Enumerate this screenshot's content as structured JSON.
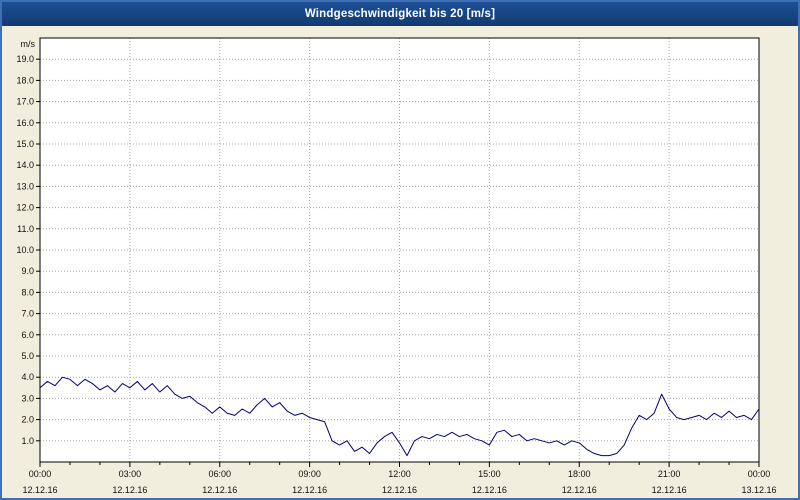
{
  "title": "Windgeschwindigkeit bis 20 [m/s]",
  "colors": {
    "background": "#f2eedd",
    "window_border": "#3f6fb5",
    "titlebar": "#16437e",
    "title_text": "#ffffff",
    "plot_bg": "#ffffff",
    "grid": "#a8a8a8",
    "axis": "#000000",
    "label": "#101010",
    "line": "#00007d"
  },
  "chart_data": {
    "type": "line",
    "title": "Windgeschwindigkeit bis 20 [m/s]",
    "xlabel": "",
    "ylabel": "m/s",
    "ylim": [
      0,
      20
    ],
    "xlim_hours": [
      0,
      24
    ],
    "grid": true,
    "legend": "none",
    "y_ticks": [
      "1.0",
      "2.0",
      "3.0",
      "4.0",
      "5.0",
      "6.0",
      "7.0",
      "8.0",
      "9.0",
      "10.0",
      "11.0",
      "12.0",
      "13.0",
      "14.0",
      "15.0",
      "16.0",
      "17.0",
      "18.0",
      "19.0"
    ],
    "x_ticks": [
      {
        "hour": 0,
        "time": "00:00",
        "date": "12.12.16"
      },
      {
        "hour": 3,
        "time": "03:00",
        "date": "12.12.16"
      },
      {
        "hour": 6,
        "time": "06:00",
        "date": "12.12.16"
      },
      {
        "hour": 9,
        "time": "09:00",
        "date": "12.12.16"
      },
      {
        "hour": 12,
        "time": "12:00",
        "date": "12.12.16"
      },
      {
        "hour": 15,
        "time": "15:00",
        "date": "12.12.16"
      },
      {
        "hour": 18,
        "time": "18:00",
        "date": "12.12.16"
      },
      {
        "hour": 21,
        "time": "21:00",
        "date": "12.12.16"
      },
      {
        "hour": 24,
        "time": "00:00",
        "date": "13.12.16"
      }
    ],
    "series": [
      {
        "name": "Windgeschwindigkeit",
        "color": "#00007d",
        "x_start_hour": 0,
        "x_step_hours": 0.25,
        "values": [
          3.5,
          3.8,
          3.6,
          4.0,
          3.9,
          3.6,
          3.9,
          3.7,
          3.4,
          3.6,
          3.3,
          3.7,
          3.5,
          3.8,
          3.4,
          3.7,
          3.3,
          3.6,
          3.2,
          3.0,
          3.1,
          2.8,
          2.6,
          2.3,
          2.6,
          2.3,
          2.2,
          2.5,
          2.3,
          2.7,
          3.0,
          2.6,
          2.8,
          2.4,
          2.2,
          2.3,
          2.1,
          2.0,
          1.9,
          1.0,
          0.8,
          1.0,
          0.5,
          0.7,
          0.4,
          0.9,
          1.2,
          1.4,
          0.9,
          0.3,
          1.0,
          1.2,
          1.1,
          1.3,
          1.2,
          1.4,
          1.2,
          1.3,
          1.1,
          1.0,
          0.8,
          1.4,
          1.5,
          1.2,
          1.3,
          1.0,
          1.1,
          1.0,
          0.9,
          1.0,
          0.8,
          1.0,
          0.9,
          0.6,
          0.4,
          0.3,
          0.3,
          0.4,
          0.8,
          1.6,
          2.2,
          2.0,
          2.3,
          3.2,
          2.5,
          2.1,
          2.0,
          2.1,
          2.2,
          2.0,
          2.3,
          2.1,
          2.4,
          2.1,
          2.2,
          2.0,
          2.5
        ]
      }
    ]
  }
}
